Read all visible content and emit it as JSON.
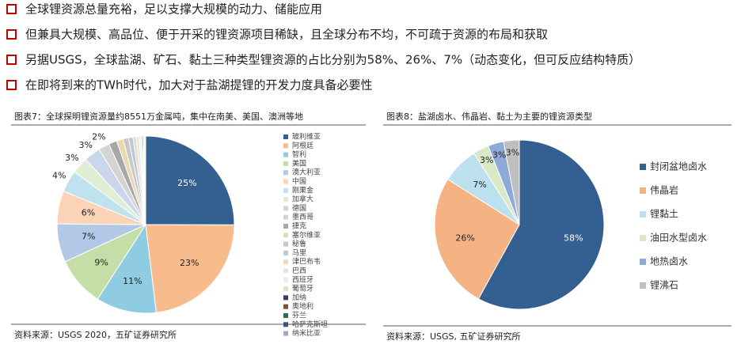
{
  "bullets": [
    "全球锂资源总量充裕，足以支撑大规模的动力、储能应用",
    "但兼具大规模、高品位、便于开采的锂资源项目稀缺，且全球分布不均，不可疏于资源的布局和获取",
    "另据USGS，全球盐湖、矿石、黏土三种类型锂资源的占比分别为58%、26%、7%（动态变化，但可反应结构特质）",
    "在即将到来的TWh时代，加大对于盐湖提锂的开发力度具备必要性"
  ],
  "chart_data": [
    {
      "type": "pie",
      "title": "图表7：全球探明锂资源量约8551万金属吨，集中在南美、美国、澳洲等地",
      "source": "资料来源：USGS 2020，五矿证券研究所",
      "categories": [
        "玻利维亚",
        "阿根廷",
        "智利",
        "美国",
        "澳大利亚",
        "中国",
        "刚果金",
        "加拿大",
        "德国",
        "墨西哥",
        "捷克",
        "塞尔维亚",
        "秘鲁",
        "马里",
        "津巴布韦",
        "巴西",
        "西班牙",
        "葡萄牙",
        "加纳",
        "奥地利",
        "芬兰",
        "哈萨克斯坦",
        "纳米比亚"
      ],
      "values": [
        25,
        23,
        11,
        9,
        7,
        6,
        4,
        3,
        3,
        2,
        1.5,
        1.2,
        1,
        0.8,
        0.6,
        0.5,
        0.3,
        0.3,
        0.2,
        0.1,
        0.1,
        0.1,
        0.1
      ],
      "value_labels": [
        "25%",
        "23%",
        "11%",
        "9%",
        "7%",
        "6%",
        "4%",
        "3%",
        "3%",
        "2%",
        null,
        null,
        null,
        null,
        null,
        null,
        null,
        null,
        null,
        null,
        null,
        null,
        null
      ],
      "colors": [
        "#335f91",
        "#f7bb8c",
        "#8fcbe1",
        "#c5dea8",
        "#b3c8e6",
        "#fbd3b6",
        "#c0e2ee",
        "#e1eed6",
        "#cad6ea",
        "#d4d4d4",
        "#a7a7a7",
        "#e9d8b0",
        "#c7c7c7",
        "#b8c9d8",
        "#efd9c6",
        "#dce8ef",
        "#eaeaea",
        "#d8e6cd",
        "#333d6b",
        "#7b5235",
        "#2f6e4d",
        "#3c5377",
        "#9ea9c4"
      ]
    },
    {
      "type": "pie",
      "title": "图表8：盐湖卤水、伟晶岩、黏土为主要的锂资源类型",
      "source": "资料来源：USGS, 五矿证券研究所",
      "categories": [
        "封闭盆地卤水",
        "伟晶岩",
        "锂黏土",
        "油田水型卤水",
        "地热卤水",
        "锂沸石"
      ],
      "values": [
        58,
        26,
        7,
        3,
        3,
        3
      ],
      "value_labels": [
        "58%",
        "26%",
        "7%",
        "3%",
        "3%",
        "3%"
      ],
      "colors": [
        "#335f91",
        "#f5b384",
        "#bde0ef",
        "#d9e8c5",
        "#8eaad9",
        "#bfbfbf"
      ]
    }
  ]
}
